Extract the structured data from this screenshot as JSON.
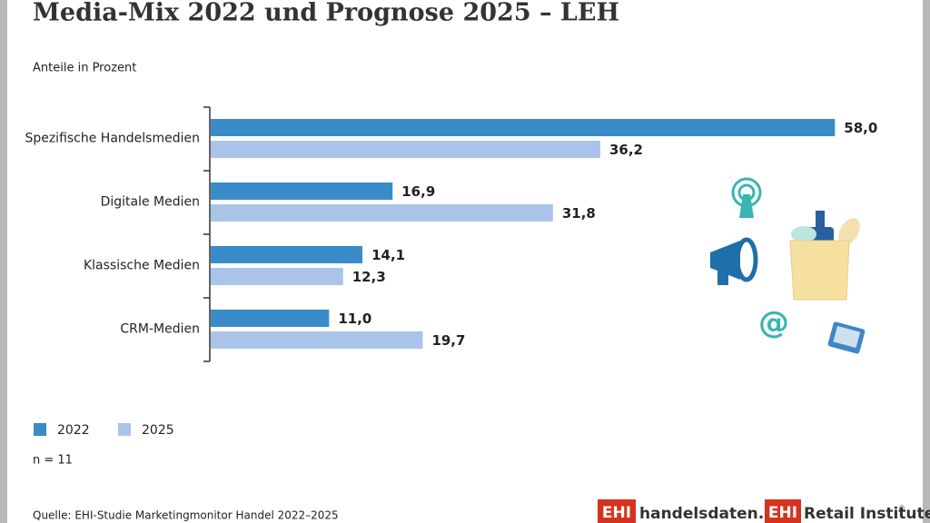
{
  "chart_data": {
    "type": "bar",
    "orientation": "horizontal",
    "title": "Media-Mix 2022 und Prognose 2025 – LEH",
    "subtitle": "Anteile in Prozent",
    "categories": [
      "Spezifische Handelsmedien",
      "Digitale Medien",
      "Klassische Medien",
      "CRM-Medien"
    ],
    "series": [
      {
        "name": "2022",
        "color": "#3a8cc8",
        "values": [
          58.0,
          16.9,
          14.1,
          11.0
        ],
        "value_labels": [
          "58,0",
          "16,9",
          "14,1",
          "11,0"
        ]
      },
      {
        "name": "2025",
        "color": "#a9c4e8",
        "values": [
          36.2,
          31.8,
          12.3,
          19.7
        ],
        "value_labels": [
          "36,2",
          "31,8",
          "12,3",
          "19,7"
        ]
      }
    ],
    "xlim": [
      0,
      60
    ],
    "note": "n = 11",
    "source": "Quelle: EHI-Studie Marketingmonitor Handel 2022–2025",
    "logos": {
      "brand_short": "EHI",
      "site": "handelsdaten.de",
      "institute": "Retail Institute",
      "registered": "®"
    }
  }
}
